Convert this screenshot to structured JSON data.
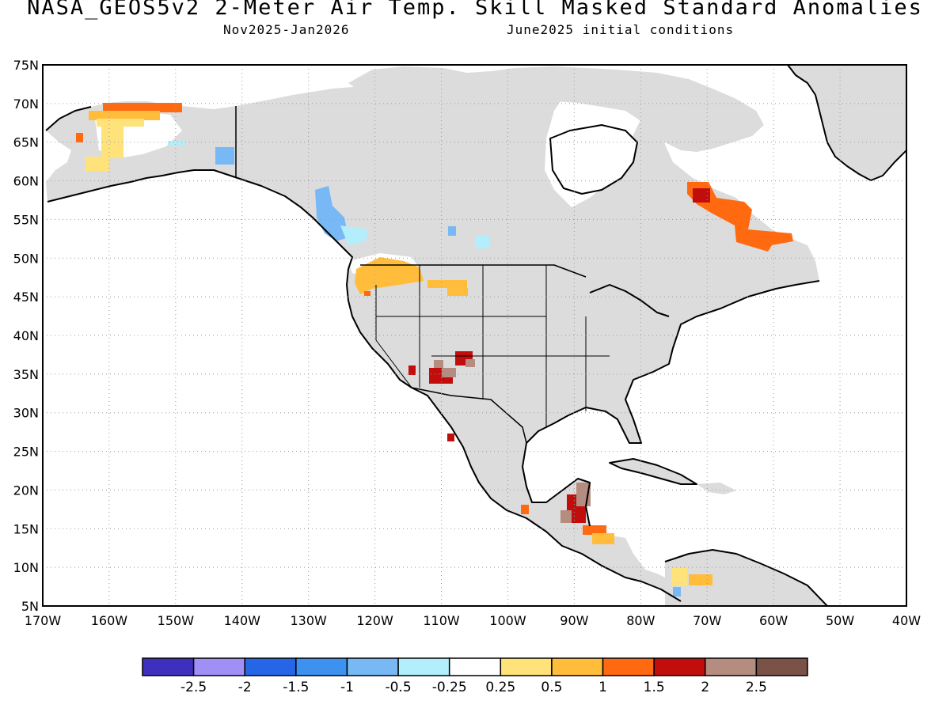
{
  "title": "NASA_GEOS5v2 2-Meter Air Temp. Skill Masked Standard Anomalies",
  "subtitle_left": "Nov2025-Jan2026",
  "subtitle_right": "June2025 initial conditions",
  "lat_labels": [
    "75N",
    "70N",
    "65N",
    "60N",
    "55N",
    "50N",
    "45N",
    "40N",
    "35N",
    "30N",
    "25N",
    "20N",
    "15N",
    "10N",
    "5N"
  ],
  "lon_labels": [
    "170W",
    "160W",
    "150W",
    "140W",
    "130W",
    "120W",
    "110W",
    "100W",
    "90W",
    "80W",
    "70W",
    "60W",
    "50W",
    "40W"
  ],
  "legend": {
    "colors": [
      "#3f2fbf",
      "#a090f5",
      "#2466e6",
      "#3d91ef",
      "#78b9f5",
      "#b2eefb",
      "#ffffff",
      "#ffe27a",
      "#ffbd3b",
      "#ff6a10",
      "#c20d0d",
      "#b48c80",
      "#7a5248"
    ],
    "labels": [
      "-2.5",
      "-2",
      "-1.5",
      "-1",
      "-0.5",
      "-0.25",
      "0.25",
      "0.5",
      "1",
      "1.5",
      "2",
      "2.5"
    ]
  },
  "colors": {
    "land_skill": "#dcdcdc",
    "coastline": "#000000",
    "grid": "#999999"
  }
}
